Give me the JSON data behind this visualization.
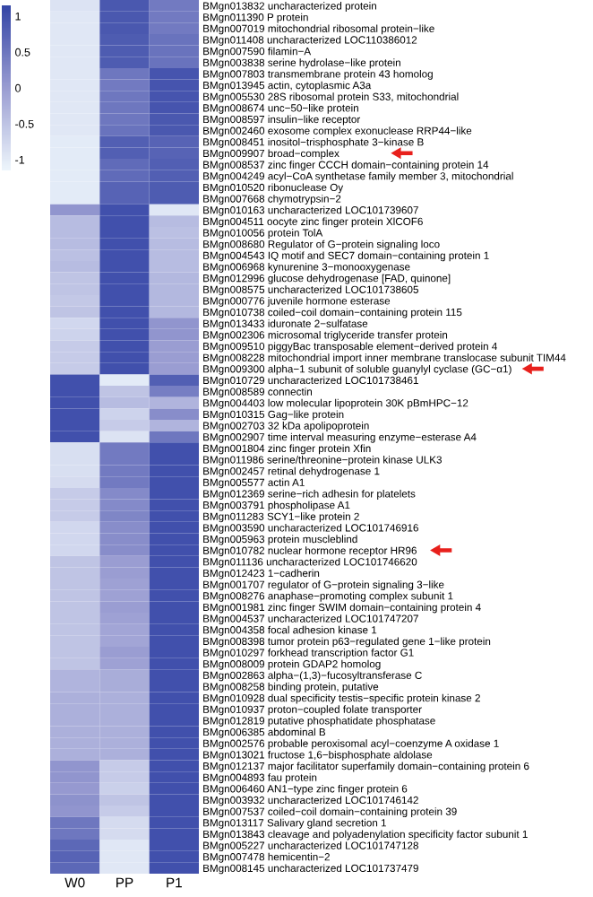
{
  "chart_data": {
    "type": "heatmap",
    "categories": [
      "W0",
      "PP",
      "P1"
    ],
    "y_categories": [
      "BMgn013832 uncharacterized protein",
      "BMgn011390 P protein",
      "BMgn007019 mitochondrial ribosomal protein−like",
      "BMgn011408 uncharacterized LOC110386012",
      "BMgn007590 filamin−A",
      "BMgn003838 serine hydrolase−like protein",
      "BMgn007803 transmembrane protein 43 homolog",
      "BMgn013945 actin, cytoplasmic A3a",
      "BMgn005530 28S ribosomal protein S33, mitochondrial",
      "BMgn008674 unc−50−like protein",
      "BMgn008597 insulin−like receptor",
      "BMgn002460 exosome complex exonuclease RRP44−like",
      "BMgn008451 inositol−trisphosphate 3−kinase B",
      "BMgn009907 broad−complex",
      "BMgn008537 zinc finger CCCH domain−containing protein 14",
      "BMgn004249 acyl−CoA synthetase family member 3, mitochondrial",
      "BMgn010520 ribonuclease Oy",
      "BMgn007668 chymotrypsin−2",
      "BMgn010163 uncharacterized LOC101739607",
      "BMgn004511 oocyte zinc finger protein XlCOF6",
      "BMgn010056 protein TolA",
      "BMgn008680 Regulator of G−protein signaling loco",
      "BMgn004543 IQ motif and SEC7 domain−containing protein 1",
      "BMgn006968 kynurenine 3−monooxygenase",
      "BMgn012996 glucose dehydrogenase [FAD, quinone]",
      "BMgn008575 uncharacterized LOC101738605",
      "BMgn000776 juvenile hormone esterase",
      "BMgn010738 coiled−coil domain−containing protein 115",
      "BMgn013433 iduronate 2−sulfatase",
      "BMgn002306 microsomal triglyceride transfer protein",
      "BMgn009510 piggyBac transposable element−derived protein 4",
      "BMgn008228 mitochondrial import inner membrane translocase subunit TIM44",
      "BMgn009300 alpha−1 subunit of soluble guanylyl cyclase (GC−α1)",
      "BMgn010729 uncharacterized LOC101738461",
      "BMgn008589 connectin",
      "BMgn004403 low molecular lipoprotein 30K pBmHPC−12",
      "BMgn010315 Gag−like protein",
      "BMgn002703 32 kDa apolipoprotein",
      "BMgn002907 time interval measuring enzyme−esterase A4",
      "BMgn001804 zinc finger protein Xfin",
      "BMgn011986 serine/threonine−protein kinase ULK3",
      "BMgn002457 retinal dehydrogenase 1",
      "BMgn005577 actin A1",
      "BMgn012369 serine−rich adhesin for platelets",
      "BMgn003791 phospholipase A1",
      "BMgn011283 SCY1−like protein 2",
      "BMgn003590 uncharacterized LOC101746916",
      "BMgn005963 protein muscleblind",
      "BMgn010782 nuclear hormone receptor HR96",
      "BMgn011136 uncharacterized LOC101746620",
      "BMgn012423 1−cadherin",
      "BMgn001707 regulator of G−protein signaling 3−like",
      "BMgn008276 anaphase−promoting complex subunit 1",
      "BMgn001981 zinc finger SWIM domain−containing protein 4",
      "BMgn004537 uncharacterized LOC101747207",
      "BMgn004358 focal adhesion kinase 1",
      "BMgn008398 tumor protein p63−regulated gene 1−like protein",
      "BMgn010297 forkhead transcription factor G1",
      "BMgn008009 protein GDAP2 homolog",
      "BMgn002863 alpha−(1,3)−fucosyltransferase C",
      "BMgn008258 binding protein, putative",
      "BMgn010928 dual specificity testis−specific protein kinase 2",
      "BMgn010937 proton−coupled folate transporter",
      "BMgn012819 putative phosphatidate phosphatase",
      "BMgn006385 abdominal B",
      "BMgn002576 probable peroxisomal acyl−coenzyme A oxidase 1",
      "BMgn013021 fructose 1,6−bisphosphate aldolase",
      "BMgn012137 major facilitator superfamily domain−containing protein 6",
      "BMgn004893 fau protein",
      "BMgn006460 AN1−type zinc finger protein 6",
      "BMgn003932 uncharacterized LOC101746142",
      "BMgn007537 coiled−coil domain−containing protein 39",
      "BMgn013117 Salivary gland secretion 1",
      "BMgn013843 cleavage and polyadenylation specificity factor subunit 1",
      "BMgn005227 uncharacterized LOC101747128",
      "BMgn007478 hemicentin−2",
      "BMgn008145 uncharacterized LOC101737479"
    ],
    "cells": [
      [
        -0.9,
        0.9,
        0.45
      ],
      [
        -0.95,
        0.9,
        0.45
      ],
      [
        -0.95,
        0.9,
        0.45
      ],
      [
        -0.95,
        0.85,
        0.55
      ],
      [
        -0.95,
        0.85,
        0.55
      ],
      [
        -0.95,
        0.85,
        0.55
      ],
      [
        -0.95,
        0.5,
        0.95
      ],
      [
        -0.95,
        0.45,
        0.95
      ],
      [
        -0.95,
        0.5,
        0.95
      ],
      [
        -0.95,
        0.5,
        0.95
      ],
      [
        -0.95,
        0.5,
        0.9
      ],
      [
        -0.95,
        0.55,
        0.9
      ],
      [
        -1,
        0.8,
        0.75
      ],
      [
        -1,
        0.8,
        0.75
      ],
      [
        -1,
        0.65,
        0.8
      ],
      [
        -1,
        0.65,
        0.8
      ],
      [
        -1,
        0.75,
        0.85
      ],
      [
        -1,
        0.75,
        0.85
      ],
      [
        0.1,
        1,
        -0.95
      ],
      [
        -0.4,
        1,
        -0.4
      ],
      [
        -0.4,
        1,
        -0.45
      ],
      [
        -0.4,
        1,
        -0.4
      ],
      [
        -0.45,
        1,
        -0.4
      ],
      [
        -0.4,
        1,
        -0.4
      ],
      [
        -0.5,
        1,
        -0.35
      ],
      [
        -0.5,
        1,
        -0.35
      ],
      [
        -0.55,
        1,
        -0.35
      ],
      [
        -0.5,
        1,
        -0.35
      ],
      [
        -0.75,
        1,
        0.1
      ],
      [
        -0.7,
        1,
        0.1
      ],
      [
        -0.6,
        1,
        0
      ],
      [
        -0.6,
        1,
        0
      ],
      [
        -0.6,
        1,
        0
      ],
      [
        1,
        -1,
        0.8
      ],
      [
        1,
        -0.5,
        0.4
      ],
      [
        1,
        -0.4,
        -0.3
      ],
      [
        1,
        -0.7,
        0.2
      ],
      [
        1,
        -0.6,
        -0.3
      ],
      [
        1,
        -0.9,
        0.5
      ],
      [
        -0.85,
        0.45,
        1
      ],
      [
        -0.85,
        0.45,
        1
      ],
      [
        -0.85,
        0.45,
        1
      ],
      [
        -0.8,
        0.45,
        1
      ],
      [
        -0.6,
        0.25,
        1
      ],
      [
        -0.6,
        0.25,
        1
      ],
      [
        -0.6,
        0.3,
        1
      ],
      [
        -0.75,
        0.2,
        1
      ],
      [
        -0.75,
        0.2,
        1
      ],
      [
        -0.75,
        0.2,
        1
      ],
      [
        -0.5,
        0,
        1
      ],
      [
        -0.5,
        0,
        1
      ],
      [
        -0.5,
        -0.05,
        1
      ],
      [
        -0.5,
        -0.05,
        1
      ],
      [
        -0.5,
        0,
        1
      ],
      [
        -0.5,
        -0.05,
        1
      ],
      [
        -0.5,
        -0.1,
        1
      ],
      [
        -0.5,
        -0.1,
        1
      ],
      [
        -0.5,
        0,
        1
      ],
      [
        -0.5,
        -0.05,
        1
      ],
      [
        -0.3,
        -0.2,
        1
      ],
      [
        -0.3,
        -0.2,
        1
      ],
      [
        -0.25,
        -0.25,
        1
      ],
      [
        -0.25,
        -0.25,
        1
      ],
      [
        -0.25,
        -0.25,
        1
      ],
      [
        -0.25,
        -0.25,
        1
      ],
      [
        -0.25,
        -0.25,
        1
      ],
      [
        -0.25,
        -0.25,
        1
      ],
      [
        0.1,
        -0.6,
        1
      ],
      [
        0.1,
        -0.6,
        1
      ],
      [
        0.05,
        -0.65,
        1
      ],
      [
        0.15,
        -0.5,
        1
      ],
      [
        0.1,
        -0.6,
        1
      ],
      [
        0.5,
        -0.8,
        1
      ],
      [
        0.5,
        -0.8,
        1
      ],
      [
        0.7,
        -0.95,
        1
      ],
      [
        0.75,
        -0.95,
        1
      ],
      [
        0.7,
        -0.95,
        1
      ]
    ],
    "clim": [
      -1.15,
      1.15
    ],
    "cticks": [
      -1,
      -0.5,
      0,
      0.5,
      1
    ]
  }
}
